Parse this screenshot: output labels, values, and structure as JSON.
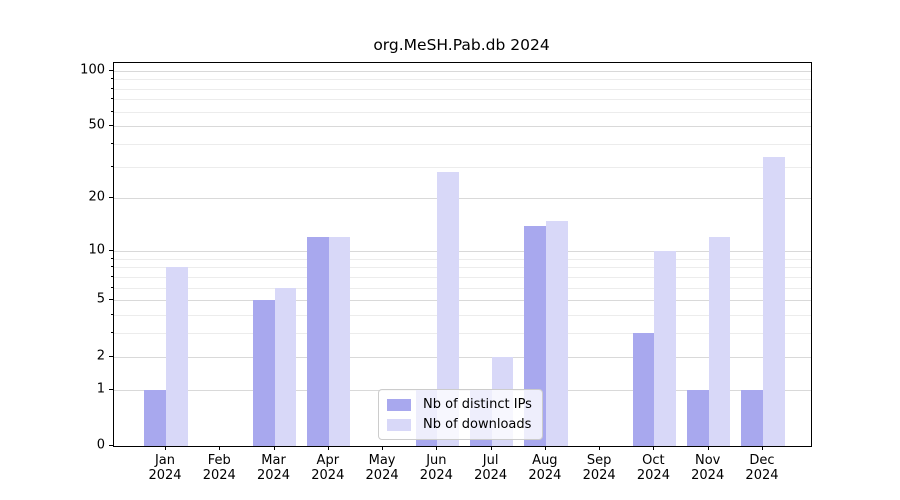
{
  "title": "org.MeSH.Pab.db 2024",
  "chart_data": {
    "type": "bar",
    "title": "org.MeSH.Pab.db 2024",
    "categories": [
      "Jan",
      "Feb",
      "Mar",
      "Apr",
      "May",
      "Jun",
      "Jul",
      "Aug",
      "Sep",
      "Oct",
      "Nov",
      "Dec"
    ],
    "x_year_label": "2024",
    "series": [
      {
        "name": "Nb of distinct IPs",
        "color": "#a8a8ee",
        "values": [
          1,
          0,
          5,
          12,
          0,
          1,
          1,
          14,
          0,
          3,
          1,
          1
        ]
      },
      {
        "name": "Nb of downloads",
        "color": "#d8d8f8",
        "values": [
          8,
          0,
          6,
          12,
          0,
          28,
          2,
          15,
          0,
          10,
          12,
          34
        ]
      }
    ],
    "yscale": "log1p",
    "ylim": [
      0,
      110
    ],
    "ytick_values": [
      0,
      1,
      2,
      5,
      10,
      20,
      50,
      100
    ],
    "ytick_minor_values": [
      3,
      4,
      6,
      7,
      8,
      9,
      30,
      40,
      60,
      70,
      80,
      90
    ],
    "grid": "on",
    "legend_position": "lower center",
    "xlabel": "",
    "ylabel": ""
  }
}
